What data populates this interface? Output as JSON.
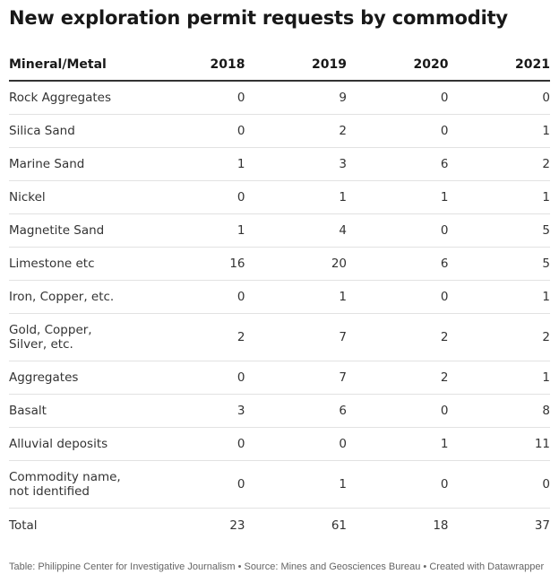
{
  "title": "New exploration permit requests by commodity",
  "chart_data": {
    "type": "table",
    "title": "New exploration permit requests by commodity",
    "columns": [
      "Mineral/Metal",
      "2018",
      "2019",
      "2020",
      "2021"
    ],
    "rows": [
      {
        "name": "Rock Aggregates",
        "values": [
          "0",
          "9",
          "0",
          "0"
        ]
      },
      {
        "name": "Silica Sand",
        "values": [
          "0",
          "2",
          "0",
          "1"
        ]
      },
      {
        "name": "Marine Sand",
        "values": [
          "1",
          "3",
          "6",
          "2"
        ]
      },
      {
        "name": "Nickel",
        "values": [
          "0",
          "1",
          "1",
          "1"
        ]
      },
      {
        "name": "Magnetite Sand",
        "values": [
          "1",
          "4",
          "0",
          "5"
        ]
      },
      {
        "name": "Limestone etc",
        "values": [
          "16",
          "20",
          "6",
          "5"
        ]
      },
      {
        "name": "Iron, Copper, etc.",
        "values": [
          "0",
          "1",
          "0",
          "1"
        ]
      },
      {
        "name": "Gold, Copper, Silver, etc.",
        "values": [
          "2",
          "7",
          "2",
          "2"
        ]
      },
      {
        "name": "Aggregates",
        "values": [
          "0",
          "7",
          "2",
          "1"
        ]
      },
      {
        "name": "Basalt",
        "values": [
          "3",
          "6",
          "0",
          "8"
        ]
      },
      {
        "name": "Alluvial deposits",
        "values": [
          "0",
          "0",
          "1",
          "11"
        ]
      },
      {
        "name": "Commodity name, not identified",
        "values": [
          "0",
          "1",
          "0",
          "0"
        ]
      },
      {
        "name": "Total",
        "values": [
          "23",
          "61",
          "18",
          "37"
        ]
      }
    ]
  },
  "footer": "Table: Philippine Center for Investigative Journalism • Source: Mines and Geosciences Bureau • Created with Datawrapper"
}
